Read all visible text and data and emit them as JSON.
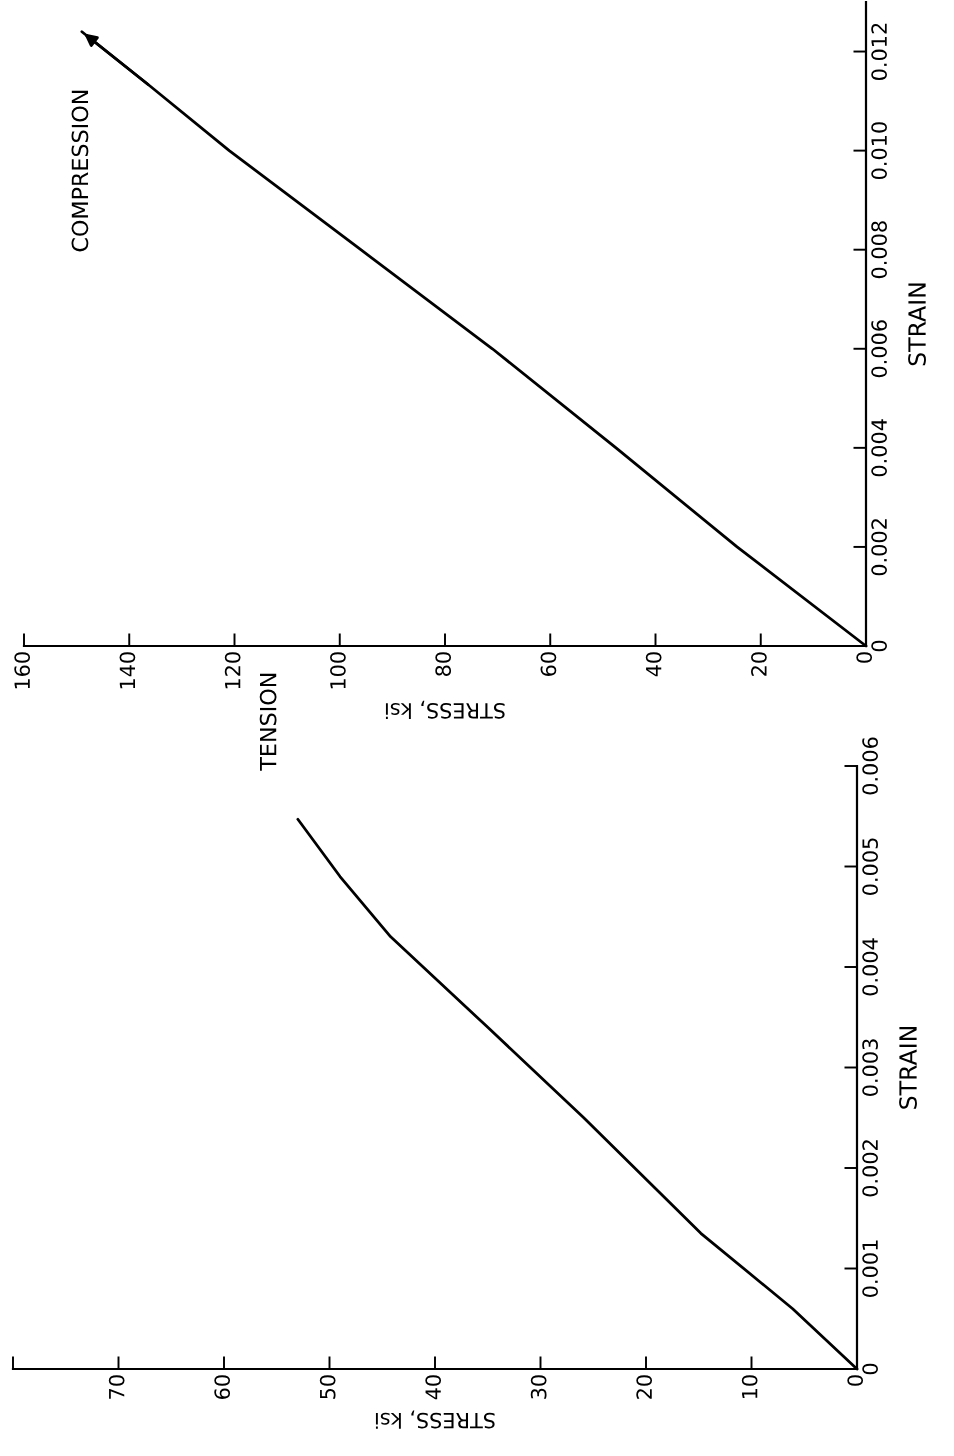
{
  "chart_data": [
    {
      "type": "line",
      "xlabel": "STRESS, ksi",
      "ylabel": "STRAIN",
      "xlim": [
        80,
        0
      ],
      "xticks": [
        0,
        10,
        20,
        30,
        40,
        50,
        60,
        70,
        {
          "value": 80,
          "label": null
        }
      ],
      "ylim": [
        0,
        0.006
      ],
      "yticks": [
        0,
        0.001,
        0.002,
        0.003,
        0.004,
        0.005,
        0.006
      ],
      "series": [
        {
          "name": "TENSION",
          "color": "#000000",
          "x": [
            0,
            6.1,
            14.8,
            25.9,
            35,
            44.2,
            49,
            53
          ],
          "values": [
            0,
            0.0006,
            0.00135,
            0.0025,
            0.0034,
            0.0043,
            0.0049,
            0.00547
          ]
        }
      ]
    },
    {
      "type": "line",
      "xlabel": "STRESS, ksi",
      "ylabel": "STRAIN",
      "xlim": [
        160,
        0
      ],
      "xticks": [
        0,
        20,
        40,
        60,
        80,
        100,
        120,
        140,
        160
      ],
      "ylim": [
        0,
        0.013
      ],
      "yticks": [
        0,
        0.002,
        0.004,
        0.006,
        0.008,
        {
          "value": 0.01,
          "label": "0.010"
        },
        0.012
      ],
      "series": [
        {
          "name": "COMPRESSION",
          "color": "#000000",
          "x": [
            0,
            24.5,
            47.5,
            71,
            96,
            121,
            136,
            149
          ],
          "values": [
            0,
            0.002,
            0.004,
            0.006,
            0.008,
            0.01,
            0.0113,
            0.0124
          ]
        }
      ]
    }
  ]
}
